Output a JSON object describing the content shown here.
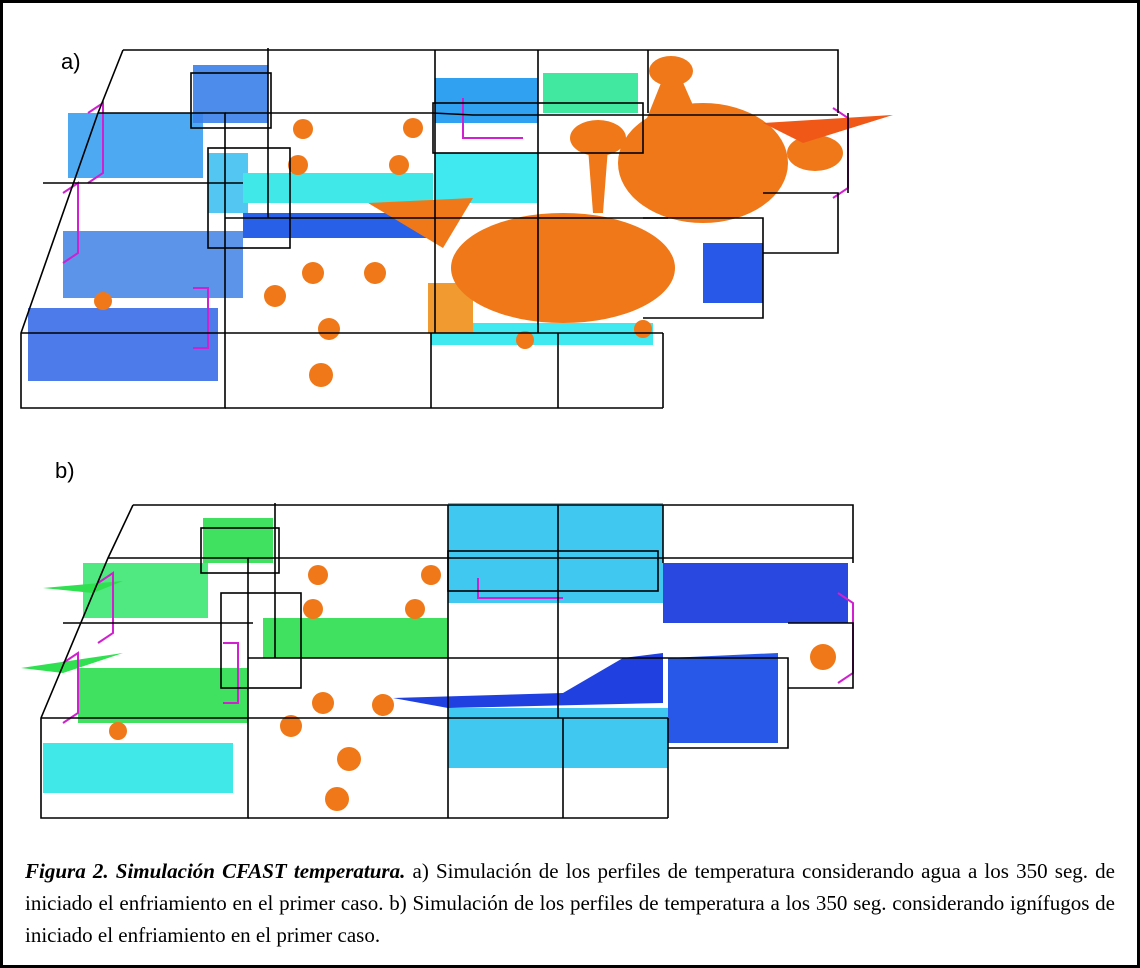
{
  "panel_a": {
    "label": "a)"
  },
  "panel_b": {
    "label": "b)"
  },
  "caption": {
    "title": "Figura 2. Simulación CFAST temperatura.",
    "text": "a) Simulación de los perfiles de temperatura considerando agua a los 350 seg. de iniciado el enfriamiento en el primer caso. b) Simulación de los perfiles de temperatura a los 350 seg. considerando ignífugos de iniciado el enfriamiento en el primer caso."
  }
}
